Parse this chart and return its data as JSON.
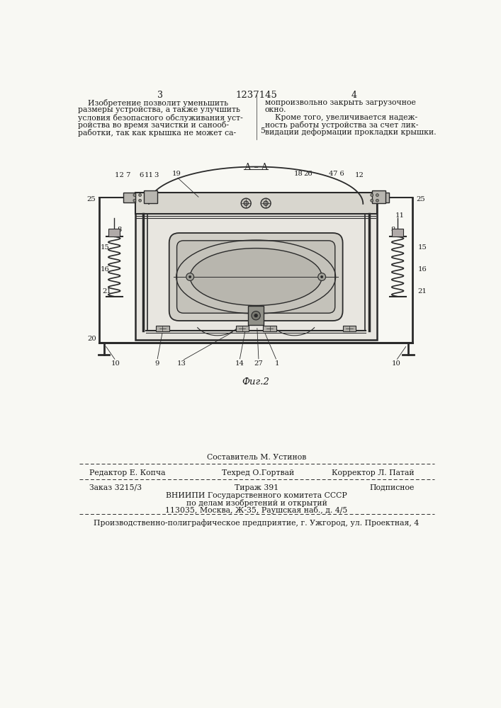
{
  "page_num_left": "3",
  "page_num_center": "1237145",
  "page_num_right": "4",
  "text_col1_lines": [
    "    Изобретение позволит уменьшить",
    "размеры устройства, а также улучшить",
    "условия безопасного обслуживания уст-",
    "ройства во время зачистки и санооб-",
    "работки, так как крышка не может са-"
  ],
  "text_col2_lines": [
    "мопроизвольно закрыть загрузочное",
    "окно.",
    "    Кроме того, увеличивается надеж-",
    "ность работы устройства за счет лик-",
    "видации деформации прокладки крышки."
  ],
  "line5": "5",
  "fig_label": "Фиг.2",
  "section_label": "А – А",
  "sestavitel_line": "Составитель М. Устинов",
  "editor_line": "Редактор Е. Копча",
  "techred_line": "Техред О.Гортвай",
  "corrector_line": "Корректор Л. Патай",
  "order_line": "Заказ 3215/3",
  "tirazh_line": "Тираж 391",
  "podpisnoe_line": "Подписное",
  "vniipii_line1": "ВНИИПИ Государственного комитета СССР",
  "vniipii_line2": "по делам изобретений и открытий",
  "vniipii_line3": "113035, Москва, Ж-35, Раушская наб., д. 4/5",
  "factory_line": "Производственно-полиграфическое предприятие, г. Ужгород, ул. Проектная, 4",
  "bg_color": "#f8f8f3",
  "text_color": "#1a1a1a",
  "line_color": "#2a2a2a",
  "draw_bg": "#f0f0ea"
}
